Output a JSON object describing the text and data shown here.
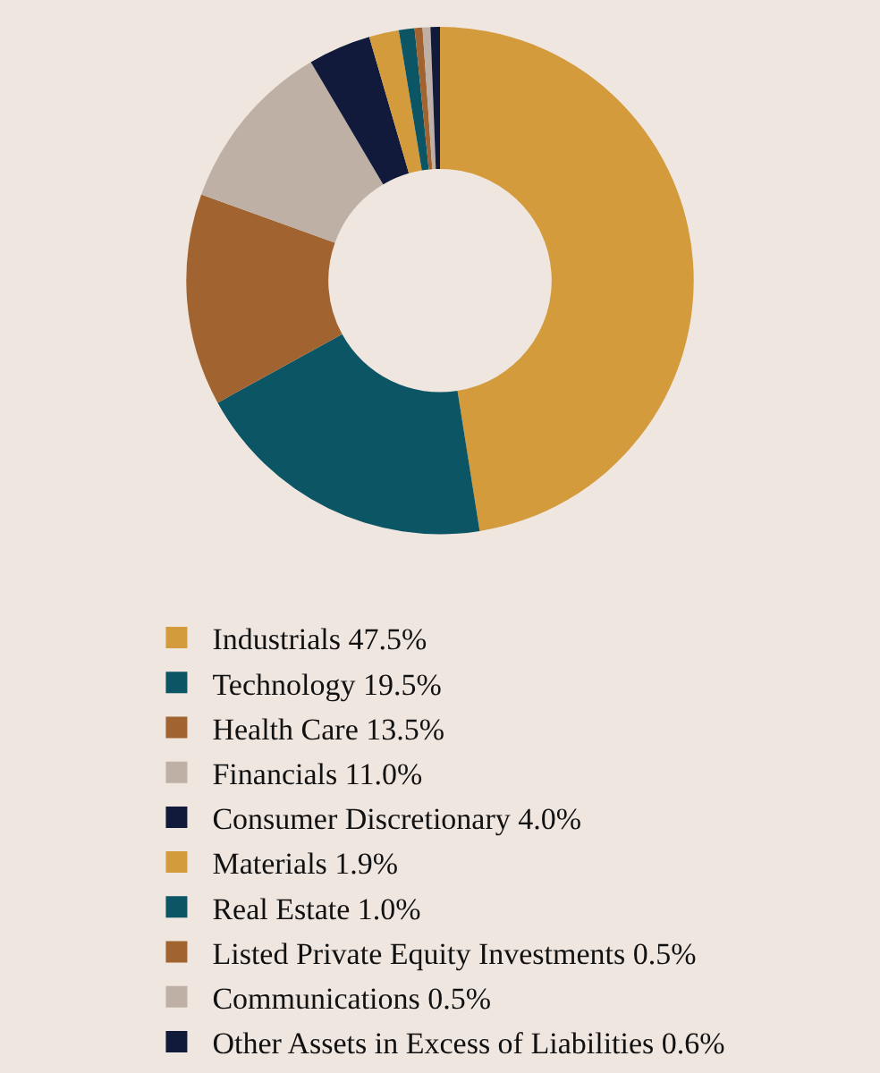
{
  "chart_data": {
    "type": "donut",
    "categories": [
      "Industrials 47.5%",
      "Technology 19.5%",
      "Health Care 13.5%",
      "Financials 11.0%",
      "Consumer Discretionary 4.0%",
      "Materials 1.9%",
      "Real Estate 1.0%",
      "Listed Private Equity Investments 0.5%",
      "Communications 0.5%",
      "Other Assets in Excess of Liabilities 0.6%"
    ],
    "values": [
      47.5,
      19.5,
      13.5,
      11.0,
      4.0,
      1.9,
      1.0,
      0.5,
      0.5,
      0.6
    ],
    "colors": [
      "#d39b3b",
      "#0b5565",
      "#a1632f",
      "#bfb0a5",
      "#111a3b",
      "#d39b3b",
      "#0b5565",
      "#a1632f",
      "#bfb0a5",
      "#111a3b"
    ],
    "legend": "bottom"
  }
}
